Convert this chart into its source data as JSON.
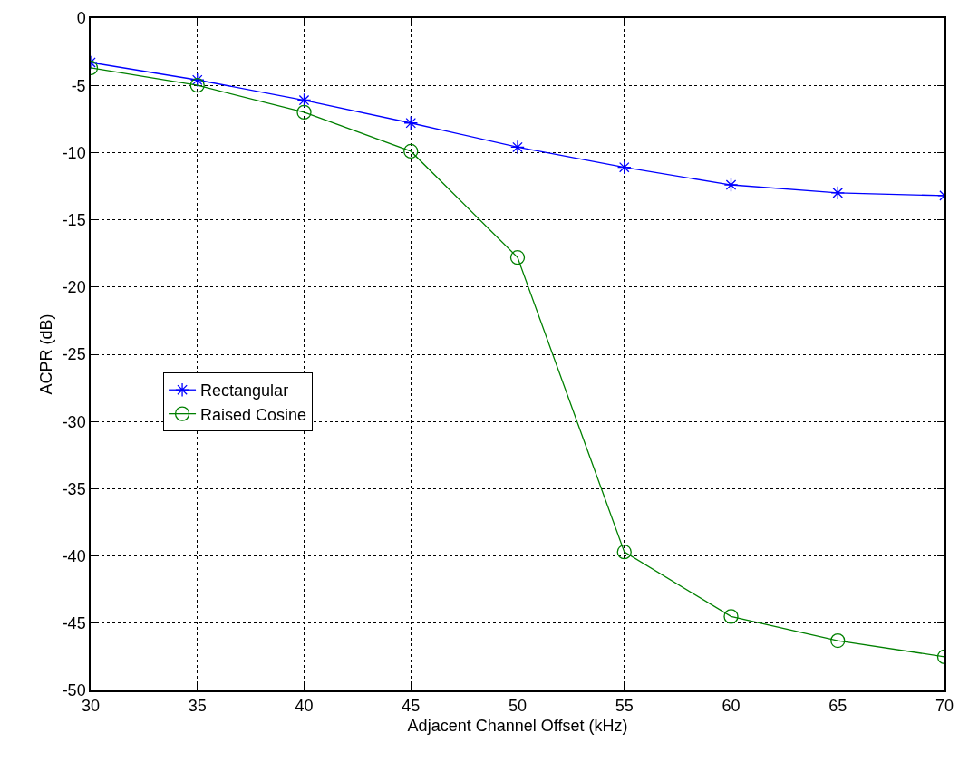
{
  "chart_data": {
    "type": "line",
    "xlabel": "Adjacent Channel Offset (kHz)",
    "ylabel": "ACPR (dB)",
    "x": [
      30,
      35,
      40,
      45,
      50,
      55,
      60,
      65,
      70
    ],
    "series": [
      {
        "name": "Rectangular",
        "color": "#0000ff",
        "marker": "cross",
        "values": [
          -3.3,
          -4.6,
          -6.1,
          -7.8,
          -9.6,
          -11.1,
          -12.4,
          -13,
          -13.2
        ]
      },
      {
        "name": "Raised Cosine",
        "color": "#008000",
        "marker": "circle",
        "values": [
          -3.7,
          -5,
          -7,
          -9.9,
          -17.8,
          -39.7,
          -44.5,
          -46.3,
          -47.5
        ]
      }
    ],
    "xlim": [
      30,
      70
    ],
    "xticks": [
      30,
      35,
      40,
      45,
      50,
      55,
      60,
      65,
      70
    ],
    "ylim": [
      -50,
      0
    ],
    "yticks": [
      -50,
      -45,
      -40,
      -35,
      -30,
      -25,
      -20,
      -15,
      -10,
      -5,
      0
    ],
    "grid": true,
    "legend": "center left",
    "line_style": "solid"
  }
}
